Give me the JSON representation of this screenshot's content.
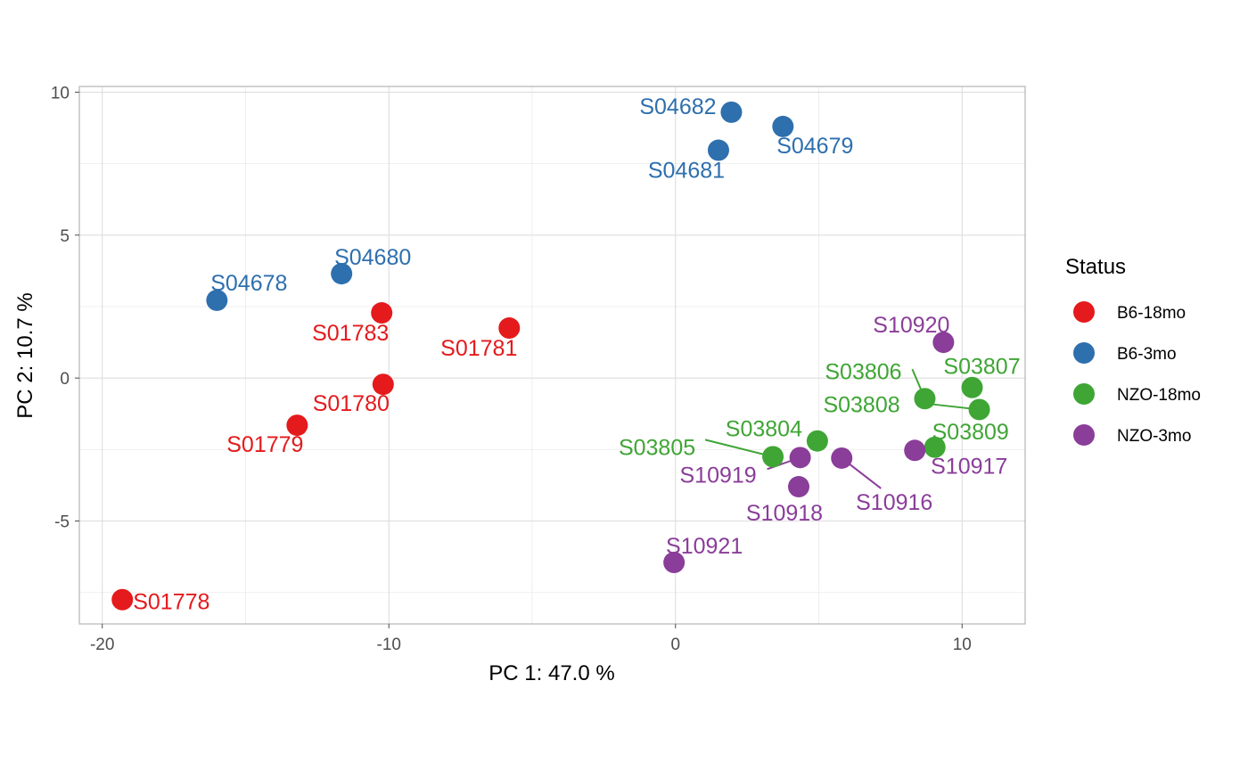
{
  "chart_data": {
    "type": "scatter",
    "xlabel": "PC 1: 47.0 %",
    "ylabel": "PC 2: 10.7 %",
    "xlim": [
      -20.8,
      12.2
    ],
    "ylim": [
      -8.6,
      10.2
    ],
    "x_ticks": [
      -20,
      -10,
      0,
      10
    ],
    "y_ticks": [
      -5,
      0,
      5,
      10
    ],
    "grid": true,
    "legend": {
      "title": "Status",
      "placement": "right"
    },
    "series": [
      {
        "name": "B6-18mo",
        "color": "#E41A1C",
        "points": [
          {
            "label": "S01778",
            "x": -19.3,
            "y": -7.75
          },
          {
            "label": "S01779",
            "x": -13.2,
            "y": -1.65
          },
          {
            "label": "S01780",
            "x": -10.2,
            "y": -0.22
          },
          {
            "label": "S01783",
            "x": -10.25,
            "y": 2.28
          },
          {
            "label": "S01781",
            "x": -5.8,
            "y": 1.75
          }
        ]
      },
      {
        "name": "B6-3mo",
        "color": "#2E6FAE",
        "points": [
          {
            "label": "S04678",
            "x": -16.0,
            "y": 2.72
          },
          {
            "label": "S04680",
            "x": -11.65,
            "y": 3.65
          },
          {
            "label": "S04682",
            "x": 1.95,
            "y": 9.3
          },
          {
            "label": "S04679",
            "x": 3.75,
            "y": 8.8
          },
          {
            "label": "S04681",
            "x": 1.5,
            "y": 7.97
          }
        ]
      },
      {
        "name": "NZO-18mo",
        "color": "#3FA535",
        "points": [
          {
            "label": "S03805",
            "x": 3.4,
            "y": -2.75
          },
          {
            "label": "S03804",
            "x": 4.95,
            "y": -2.2
          },
          {
            "label": "S03806",
            "x": 8.7,
            "y": -0.72
          },
          {
            "label": "S03807",
            "x": 10.35,
            "y": -0.33
          },
          {
            "label": "S03808",
            "x": 10.6,
            "y": -1.1
          },
          {
            "label": "S03809",
            "x": 9.05,
            "y": -2.42
          }
        ]
      },
      {
        "name": "NZO-3mo",
        "color": "#8A3D99",
        "points": [
          {
            "label": "S10920",
            "x": 9.35,
            "y": 1.25
          },
          {
            "label": "S10917",
            "x": 8.35,
            "y": -2.53
          },
          {
            "label": "S10916",
            "x": 5.8,
            "y": -2.8
          },
          {
            "label": "S10919",
            "x": 4.35,
            "y": -2.78
          },
          {
            "label": "S10918",
            "x": 4.3,
            "y": -3.8
          },
          {
            "label": "S10921",
            "x": -0.05,
            "y": -6.45
          }
        ]
      }
    ]
  }
}
